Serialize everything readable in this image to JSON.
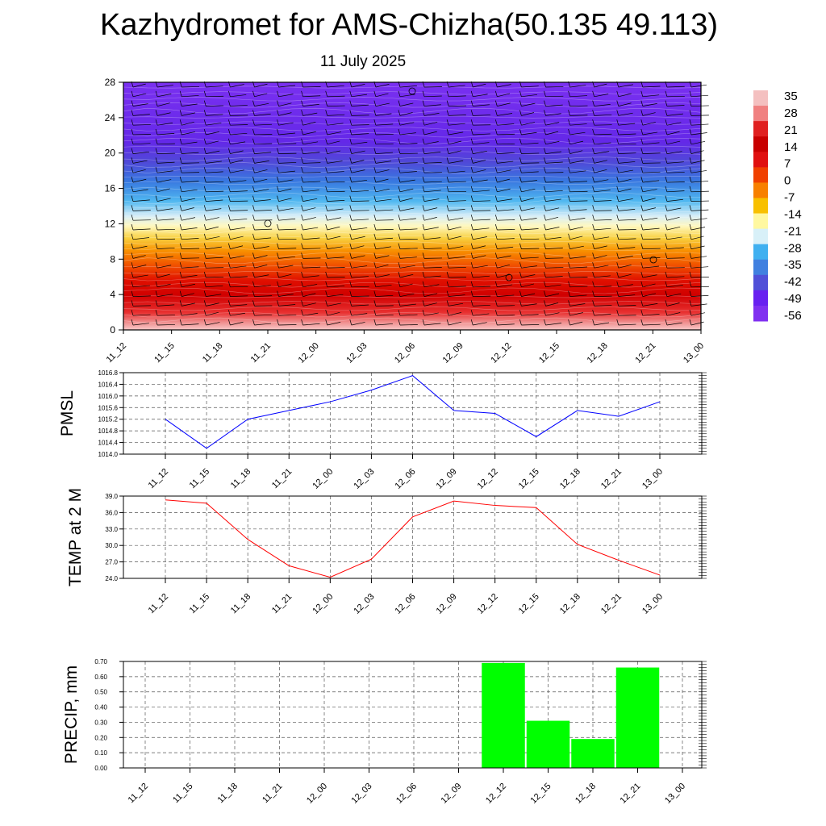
{
  "title": "Kazhydromet for AMS-Chizha(50.135 49.113)",
  "subtitle": "11 July 2025",
  "chart_data": [
    {
      "type": "heatmap",
      "name": "vertical-temperature-wind-cross-section",
      "x": [
        "11_12",
        "11_15",
        "11_18",
        "11_21",
        "12_00",
        "12_03",
        "12_06",
        "12_09",
        "12_12",
        "12_15",
        "12_18",
        "12_21",
        "13_00"
      ],
      "y_ticks": [
        0,
        4,
        8,
        12,
        16,
        20,
        24,
        28
      ],
      "ylim": [
        0,
        28
      ],
      "colorbar_labels": [
        "35",
        "28",
        "21",
        "14",
        "7",
        "0",
        "-7",
        "-14",
        "-21",
        "-28",
        "-35",
        "-42",
        "-49",
        "-56"
      ],
      "colorbar_colors": [
        "#f4c0c0",
        "#f08080",
        "#e02020",
        "#c80000",
        "#e01010",
        "#f04000",
        "#f88000",
        "#f8c000",
        "#fff8a0",
        "#d8f0f8",
        "#40b0f0",
        "#4080e0",
        "#5050d8",
        "#6820f0",
        "#8030f0"
      ],
      "temperature_profile_note": "",
      "surface_temp_range": [
        30,
        37
      ]
    },
    {
      "type": "line",
      "name": "pmsl",
      "ylabel": "PMSL",
      "x": [
        "11_12",
        "11_15",
        "11_18",
        "11_21",
        "12_00",
        "12_03",
        "12_06",
        "12_09",
        "12_12",
        "12_15",
        "12_18",
        "12_21",
        "13_00"
      ],
      "y_ticks": [
        "1014.0",
        "1014.4",
        "1014.8",
        "1015.2",
        "1015.6",
        "1016.0",
        "1016.4",
        "1016.8"
      ],
      "ylim": [
        1014.0,
        1016.8
      ],
      "values": [
        1015.2,
        1014.2,
        1015.2,
        1015.5,
        1015.8,
        1016.2,
        1016.7,
        1015.5,
        1015.4,
        1014.6,
        1015.5,
        1015.3,
        1015.8
      ],
      "color": "#0000ff",
      "grid": true
    },
    {
      "type": "line",
      "name": "temp2m",
      "ylabel": "TEMP at 2 M",
      "x": [
        "11_12",
        "11_15",
        "11_18",
        "11_21",
        "12_00",
        "12_03",
        "12_06",
        "12_09",
        "12_12",
        "12_15",
        "12_18",
        "12_21",
        "13_00"
      ],
      "y_ticks": [
        "24.0",
        "27.0",
        "30.0",
        "33.0",
        "36.0",
        "39.0"
      ],
      "ylim": [
        24.0,
        39.0
      ],
      "values": [
        38.3,
        37.7,
        31.1,
        26.3,
        24.2,
        27.5,
        35.2,
        38.1,
        37.3,
        36.9,
        30.2,
        27.3,
        24.6
      ],
      "color": "#ff0000",
      "grid": true
    },
    {
      "type": "bar",
      "name": "precip",
      "ylabel": "PRECIP, mm",
      "x": [
        "11_12",
        "11_15",
        "11_18",
        "11_21",
        "12_00",
        "12_03",
        "12_06",
        "12_09",
        "12_12",
        "12_15",
        "12_18",
        "12_21",
        "13_00"
      ],
      "y_ticks": [
        "0.00",
        "0.10",
        "0.20",
        "0.30",
        "0.40",
        "0.50",
        "0.60",
        "0.70"
      ],
      "ylim": [
        0,
        0.7
      ],
      "values": [
        0,
        0,
        0,
        0,
        0,
        0,
        0,
        0,
        0.69,
        0.31,
        0.19,
        0.66,
        0
      ],
      "color": "#00ff00",
      "grid": true
    }
  ]
}
